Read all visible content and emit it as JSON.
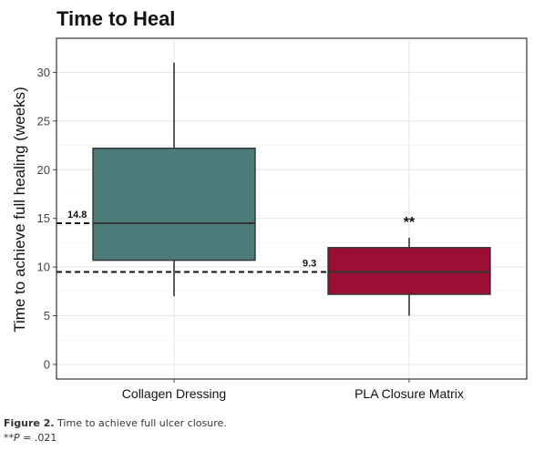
{
  "chart_data": {
    "type": "box",
    "title": "Time to Heal",
    "xlabel": "",
    "ylabel": "Time to achieve full healing (weeks)",
    "ylim": [
      -1.5,
      33.5
    ],
    "yticks": [
      0,
      5,
      10,
      15,
      20,
      25,
      30
    ],
    "grid": true,
    "categories": [
      "Collagen Dressing",
      "PLA Closure Matrix"
    ],
    "boxes": [
      {
        "category": "Collagen Dressing",
        "min": 7,
        "q1": 10.7,
        "median": 14.5,
        "q3": 22.2,
        "max": 31,
        "color": "#4c7b79"
      },
      {
        "category": "PLA Closure Matrix",
        "min": 5,
        "q1": 7.2,
        "median": 9.5,
        "q3": 12,
        "max": 13,
        "color": "#9a0f33"
      }
    ],
    "mean_lines": [
      {
        "label": "14.8",
        "value": 14.5,
        "to_box": 0
      },
      {
        "label": "9.3",
        "value": 9.5,
        "to_box": 1
      }
    ],
    "annotations": [
      {
        "text": "**",
        "box": 1
      }
    ]
  },
  "caption": {
    "figure_label": "Figure 2.",
    "figure_text": " Time to achieve full ulcer closure.",
    "stars": "**",
    "p_italic": "P",
    "p_value": " = .021"
  }
}
